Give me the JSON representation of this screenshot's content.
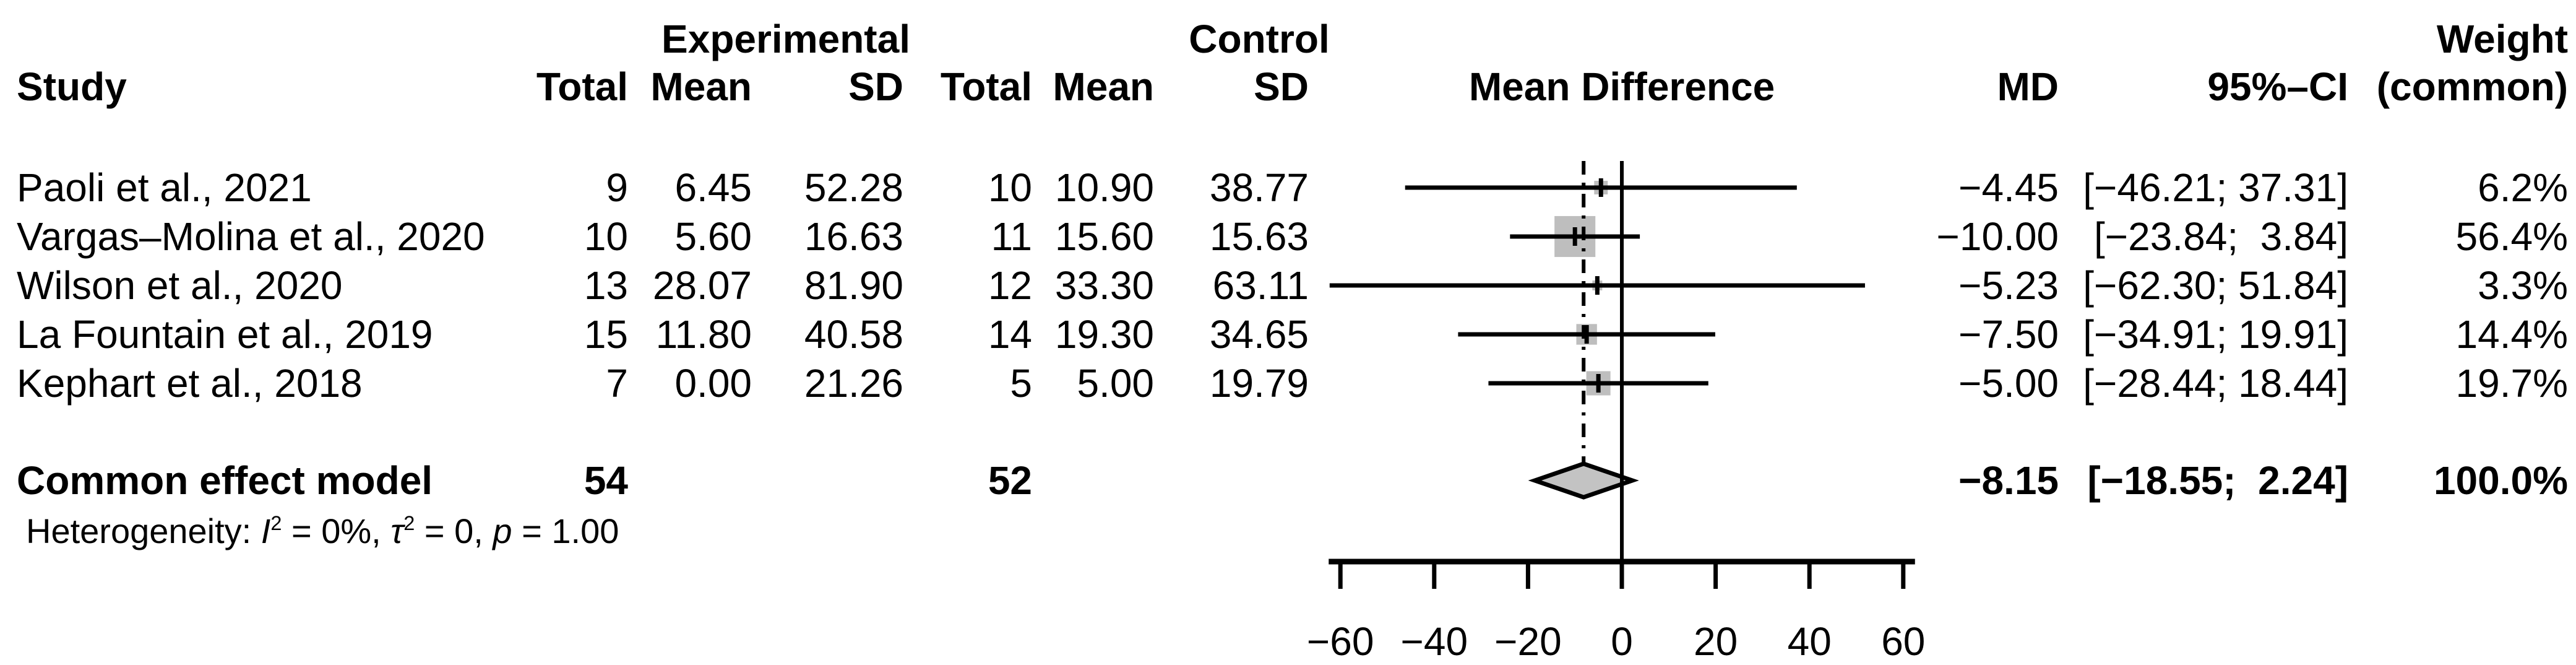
{
  "header": {
    "group_experimental": "Experimental",
    "group_control": "Control",
    "col_study": "Study",
    "col_exp_total": "Total",
    "col_exp_mean": "Mean",
    "col_exp_sd": "SD",
    "col_ctrl_total": "Total",
    "col_ctrl_mean": "Mean",
    "col_ctrl_sd": "SD",
    "col_mean_difference": "Mean Difference",
    "col_md": "MD",
    "col_ci": "95%–CI",
    "col_weight_line1": "Weight",
    "col_weight_line2": "(common)"
  },
  "rows": [
    {
      "study": "Paoli et al., 2021",
      "exp_total": "9",
      "exp_mean": "6.45",
      "exp_sd": "52.28",
      "ctrl_total": "10",
      "ctrl_mean": "10.90",
      "ctrl_sd": "38.77",
      "md": "−4.45",
      "ci": "[−46.21; 37.31]",
      "weight": "6.2%"
    },
    {
      "study": "Vargas–Molina et al., 2020",
      "exp_total": "10",
      "exp_mean": "5.60",
      "exp_sd": "16.63",
      "ctrl_total": "11",
      "ctrl_mean": "15.60",
      "ctrl_sd": "15.63",
      "md": "−10.00",
      "ci": "[−23.84;  3.84]",
      "weight": "56.4%"
    },
    {
      "study": "Wilson et al., 2020",
      "exp_total": "13",
      "exp_mean": "28.07",
      "exp_sd": "81.90",
      "ctrl_total": "12",
      "ctrl_mean": "33.30",
      "ctrl_sd": "63.11",
      "md": "−5.23",
      "ci": "[−62.30; 51.84]",
      "weight": "3.3%"
    },
    {
      "study": "La Fountain et al., 2019",
      "exp_total": "15",
      "exp_mean": "11.80",
      "exp_sd": "40.58",
      "ctrl_total": "14",
      "ctrl_mean": "19.30",
      "ctrl_sd": "34.65",
      "md": "−7.50",
      "ci": "[−34.91; 19.91]",
      "weight": "14.4%"
    },
    {
      "study": "Kephart et al., 2018",
      "exp_total": "7",
      "exp_mean": "0.00",
      "exp_sd": "21.26",
      "ctrl_total": "5",
      "ctrl_mean": "5.00",
      "ctrl_sd": "19.79",
      "md": "−5.00",
      "ci": "[−28.44; 18.44]",
      "weight": "19.7%"
    }
  ],
  "pooled": {
    "label": "Common effect model",
    "exp_total": "54",
    "ctrl_total": "52",
    "md": "−8.15",
    "ci": "[−18.55;  2.24]",
    "weight": "100.0%"
  },
  "heterogeneity": {
    "prefix": "Heterogeneity: ",
    "i_symbol": "I",
    "i_sup": "2",
    "mid1": " = 0%, ",
    "tau_symbol": "τ",
    "tau_sup": "2",
    "mid2": " = 0, ",
    "p_symbol": "p",
    "suffix": " = 1.00"
  },
  "chart_data": {
    "type": "forest",
    "effect_measure": "Mean Difference",
    "model": "common",
    "x_axis": {
      "tick_values": [
        -60,
        -40,
        -20,
        0,
        20,
        40,
        60
      ],
      "tick_labels": [
        "−60",
        "−40",
        "−20",
        "0",
        "20",
        "40",
        "60"
      ],
      "range": [
        -62.5,
        62.5
      ],
      "null_value": 0
    },
    "studies": [
      {
        "label": "Paoli et al., 2021",
        "estimate": -4.45,
        "ci_lower": -46.21,
        "ci_upper": 37.31,
        "weight_pct": 6.2
      },
      {
        "label": "Vargas–Molina et al., 2020",
        "estimate": -10.0,
        "ci_lower": -23.84,
        "ci_upper": 3.84,
        "weight_pct": 56.4
      },
      {
        "label": "Wilson et al., 2020",
        "estimate": -5.23,
        "ci_lower": -62.3,
        "ci_upper": 51.84,
        "weight_pct": 3.3
      },
      {
        "label": "La Fountain et al., 2019",
        "estimate": -7.5,
        "ci_lower": -34.91,
        "ci_upper": 19.91,
        "weight_pct": 14.4
      },
      {
        "label": "Kephart et al., 2018",
        "estimate": -5.0,
        "ci_lower": -28.44,
        "ci_upper": 18.44,
        "weight_pct": 19.7
      }
    ],
    "pooled": {
      "label": "Common effect model",
      "estimate": -8.15,
      "ci_lower": -18.55,
      "ci_upper": 2.24,
      "weight_pct": 100.0
    },
    "heterogeneity": {
      "I2": "0%",
      "tau2": "0",
      "p": "1.00"
    },
    "legend_position": "none",
    "grid": false
  },
  "colors": {
    "background": "#ffffff",
    "text": "#000000",
    "line": "#000000",
    "square": "#bebebe",
    "diamond": "#c3c3c3"
  }
}
